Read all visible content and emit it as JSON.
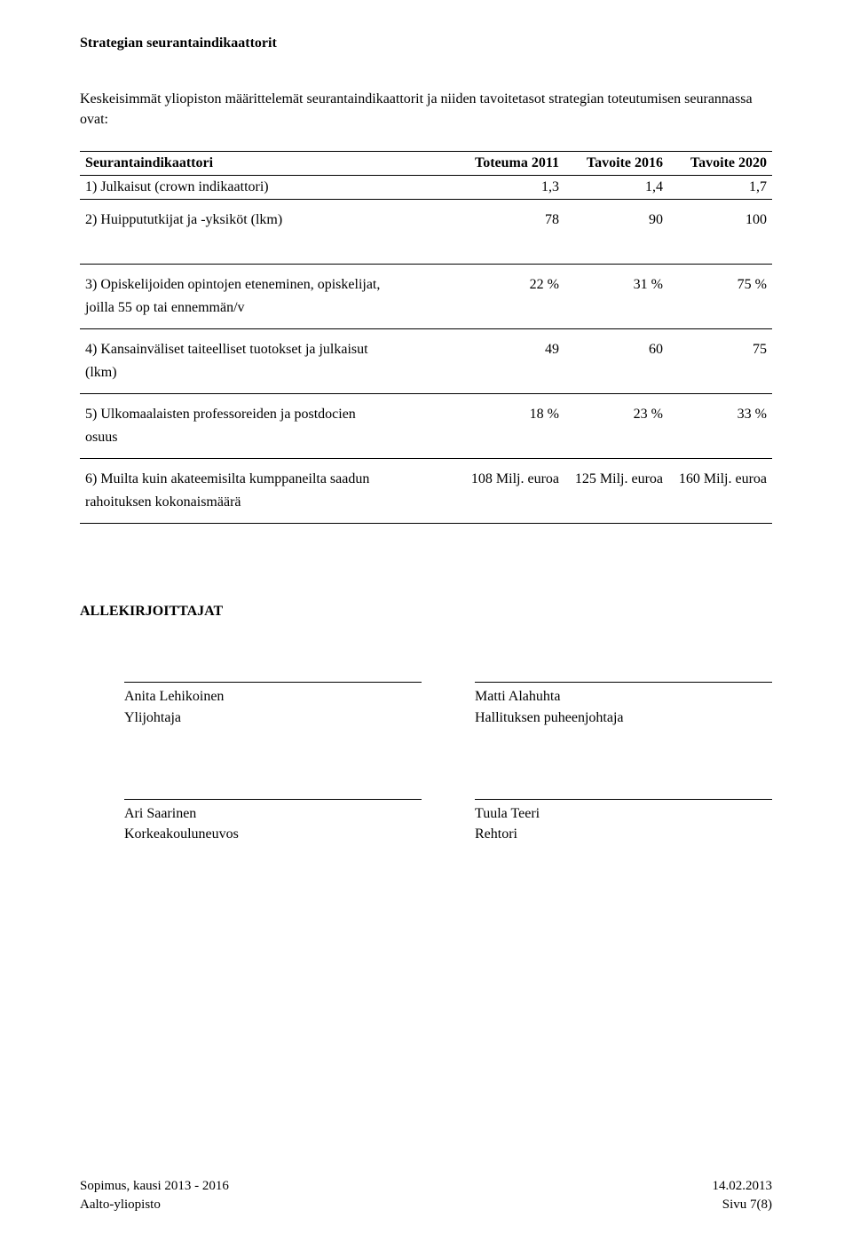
{
  "heading": "Strategian seurantaindikaattorit",
  "intro": "Keskeisimmät yliopiston määrittelemät seurantaindikaattorit ja niiden tavoitetasot strategian toteutumisen seurannassa ovat:",
  "table": {
    "headers": {
      "indicator": "Seurantaindikaattori",
      "col2011": "Toteuma 2011",
      "col2016": "Tavoite 2016",
      "col2020": "Tavoite 2020"
    },
    "rows": [
      {
        "label_lines": [
          "1) Julkaisut (crown indikaattori)"
        ],
        "v1": "1,3",
        "v2": "1,4",
        "v3": "1,7"
      },
      {
        "label_lines": [
          "2) Huippututkijat ja -yksiköt (lkm)"
        ],
        "v1": "78",
        "v2": "90",
        "v3": "100"
      },
      {
        "label_lines": [
          "3) Opiskelijoiden opintojen eteneminen, opiskelijat,",
          "joilla 55 op tai ennemmän/v"
        ],
        "v1": "22 %",
        "v2": "31 %",
        "v3": "75 %"
      },
      {
        "label_lines": [
          "4) Kansainväliset taiteelliset tuotokset ja julkaisut",
          "(lkm)"
        ],
        "v1": "49",
        "v2": "60",
        "v3": "75"
      },
      {
        "label_lines": [
          "5) Ulkomaalaisten professoreiden ja postdocien",
          "osuus"
        ],
        "v1": "18 %",
        "v2": "23 %",
        "v3": "33 %"
      },
      {
        "label_lines": [
          "6) Muilta kuin akateemisilta kumppaneilta saadun",
          "rahoituksen kokonaismäärä"
        ],
        "v1": "108 Milj. euroa",
        "v2": "125 Milj. euroa",
        "v3": "160 Milj. euroa"
      }
    ]
  },
  "signers_heading": "ALLEKIRJOITTAJAT",
  "signers": [
    [
      {
        "name": "Anita Lehikoinen",
        "title": "Ylijohtaja"
      },
      {
        "name": "Matti Alahuhta",
        "title": "Hallituksen puheenjohtaja"
      }
    ],
    [
      {
        "name": "Ari Saarinen",
        "title": "Korkeakouluneuvos"
      },
      {
        "name": "Tuula Teeri",
        "title": "Rehtori"
      }
    ]
  ],
  "footer": {
    "left_line1": "Sopimus, kausi 2013 - 2016",
    "left_line2": "Aalto-yliopisto",
    "right_line1": "14.02.2013",
    "right_line2": "Sivu   7(8)"
  }
}
